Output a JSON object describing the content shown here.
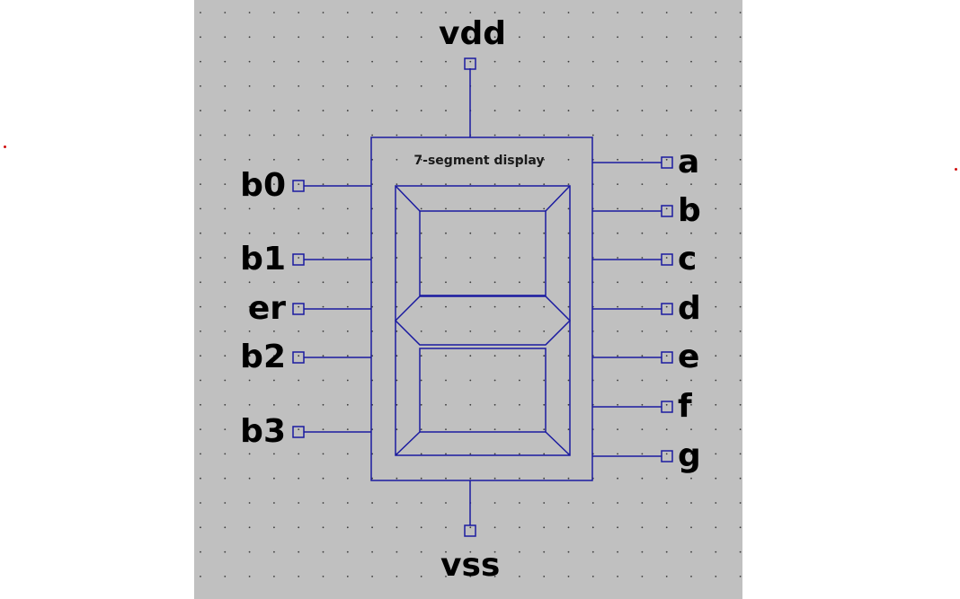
{
  "symbol": {
    "title": "7-segment display",
    "power_pin": "vdd",
    "ground_pin": "vss"
  },
  "input_pins": [
    "b0",
    "b1",
    "er",
    "b2",
    "b3"
  ],
  "output_pins": [
    "a",
    "b",
    "c",
    "d",
    "e",
    "f",
    "g"
  ],
  "colors": {
    "canvas": "#c0c0c0",
    "grid_dot": "#3a3a3a",
    "wire": "#1a1aa0",
    "marker": "#d01010"
  }
}
